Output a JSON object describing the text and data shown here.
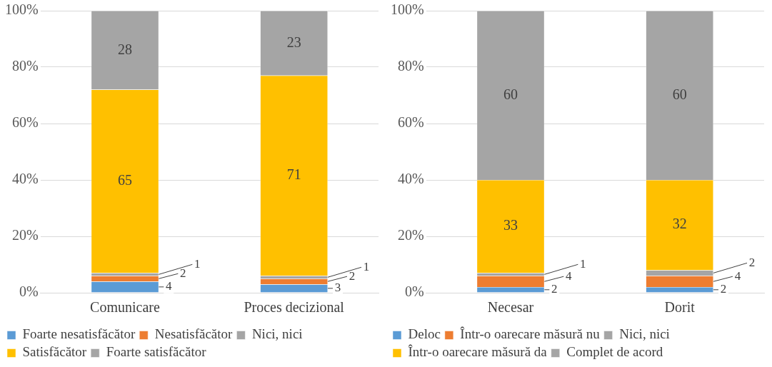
{
  "chart_data": [
    {
      "type": "bar",
      "stacked": true,
      "categories": [
        "Comunicare",
        "Proces decizional"
      ],
      "series": [
        {
          "name": "Foarte nesatisfăcător",
          "color": "#5b9bd5",
          "values": [
            4,
            3
          ]
        },
        {
          "name": "Nesatisfăcător",
          "color": "#ed7d31",
          "values": [
            2,
            2
          ]
        },
        {
          "name": "Nici, nici",
          "color": "#a5a5a5",
          "values": [
            1,
            1
          ]
        },
        {
          "name": "Satisfăcător",
          "color": "#ffc000",
          "values": [
            65,
            71
          ]
        },
        {
          "name": "Foarte satisfăcător",
          "color": "#a5a5a5",
          "values": [
            28,
            23
          ]
        }
      ],
      "ylim": [
        0,
        100
      ],
      "yticks": [
        {
          "value": 0,
          "label": "0%"
        },
        {
          "value": 20,
          "label": "20%"
        },
        {
          "value": 40,
          "label": "40%"
        },
        {
          "value": 60,
          "label": "60%"
        },
        {
          "value": 80,
          "label": "80%"
        },
        {
          "value": 100,
          "label": "100%"
        }
      ],
      "grid": "y",
      "legend": "bottom",
      "data_labels": true
    },
    {
      "type": "bar",
      "stacked": true,
      "categories": [
        "Necesar",
        "Dorit"
      ],
      "series": [
        {
          "name": "Deloc",
          "color": "#5b9bd5",
          "values": [
            2,
            2
          ]
        },
        {
          "name": "Într-o oarecare măsură nu",
          "color": "#ed7d31",
          "values": [
            4,
            4
          ]
        },
        {
          "name": "Nici, nici",
          "color": "#a5a5a5",
          "values": [
            1,
            2
          ]
        },
        {
          "name": "Într-o oarecare măsură da",
          "color": "#ffc000",
          "values": [
            33,
            32
          ]
        },
        {
          "name": "Complet de acord",
          "color": "#a5a5a5",
          "values": [
            60,
            60
          ]
        }
      ],
      "ylim": [
        0,
        100
      ],
      "yticks": [
        {
          "value": 0,
          "label": "0%"
        },
        {
          "value": 20,
          "label": "20%"
        },
        {
          "value": 40,
          "label": "40%"
        },
        {
          "value": 60,
          "label": "60%"
        },
        {
          "value": 80,
          "label": "80%"
        },
        {
          "value": 100,
          "label": "100%"
        }
      ],
      "grid": "y",
      "legend": "bottom",
      "data_labels": true
    }
  ]
}
